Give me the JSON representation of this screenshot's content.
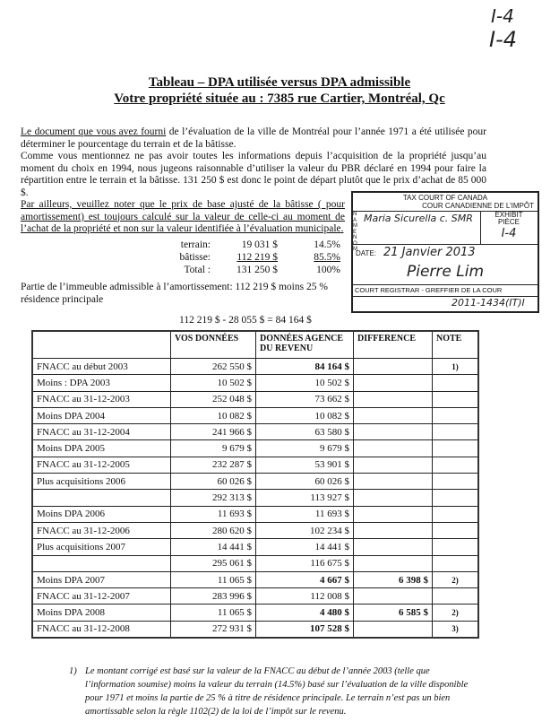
{
  "handwritten_marks": [
    "I-4",
    "I-4"
  ],
  "title": {
    "line1": "Tableau – DPA utilisée versus DPA admissible",
    "line2": "Votre propriété située au :    7385 rue Cartier, Montréal, Qc"
  },
  "paragraphs": {
    "p1_underlined": "Le document que vous avez fourni",
    "p1_rest": " de l’évaluation de la ville de Montréal pour l’année 1971 a été utilisée pour déterminer le pourcentage du terrain et de la bâtisse.",
    "p2": "Comme vous mentionnez ne pas avoir toutes les informations depuis l’acquisition de la propriété jusqu’au moment du choix en 1994, nous jugeons raisonnable d’utiliser la valeur du PBR déclaré en 1994 pour faire la répartition entre le terrain et la bâtisse.  131 250 $ est donc le point de départ plutôt que le prix d’achat de 85 000 $.",
    "p3": "Par ailleurs, veuillez noter que le prix de base ajusté de la bâtisse ( pour amortissement) est toujours calculé sur la valeur de celle-ci au moment de l’achat de la propriété et non sur la valeur identifiée à l’évaluation municipale."
  },
  "split": [
    {
      "label": "terrain:",
      "amount": "19 031 $",
      "pct": "14.5%"
    },
    {
      "label": "bâtisse:",
      "amount": "112 219 $",
      "pct": "85.5%"
    },
    {
      "label": "Total :",
      "amount": "131 250 $",
      "pct": "100%"
    }
  ],
  "admissible": {
    "line1": "Partie de l’immeuble admissible à l’amortissement:  112 219 $  moins 25 % résidence principale",
    "line2": "112 219 $  -  28 055 $   =   84 164 $"
  },
  "stamp": {
    "court": "TAX COURT OF CANADA",
    "court_fr": "COUR CANADIENNE DE L’IMPÔT",
    "exhibit": "EXHIBIT",
    "piece": "PIÈCE",
    "name_label": "NAME NOM",
    "name_value": "Maria Sicurella  c. SMR",
    "exhibit_value": "I-4",
    "date_label": "DATE:",
    "date_value": "21 Janvier 2013",
    "signature": "Pierre Lim",
    "registrar": "COURT REGISTRAR - GREFFIER DE LA COUR",
    "file_no": "2011-1434(IT)I"
  },
  "table": {
    "headers": [
      "",
      "VOS DONNÉES",
      "DONNÉES AGENCE DU REVENU",
      "DIFFERENCE",
      "NOTE"
    ],
    "rows": [
      {
        "label": "FNACC au début 2003",
        "vos": "262 550 $",
        "agence": "84 164 $",
        "diff": "",
        "note": "1)",
        "bold": true
      },
      {
        "label": "Moins : DPA 2003",
        "vos": "10 502 $",
        "agence": "10 502 $",
        "diff": "",
        "note": ""
      },
      {
        "label": "FNACC au  31-12-2003",
        "vos": "252 048 $",
        "agence": "73 662 $",
        "diff": "",
        "note": ""
      },
      {
        "label": "Moins DPA  2004",
        "vos": "10 082 $",
        "agence": "10 082 $",
        "diff": "",
        "note": ""
      },
      {
        "label": "FNACC au 31-12-2004",
        "vos": "241 966 $",
        "agence": "63 580 $",
        "diff": "",
        "note": ""
      },
      {
        "label": "Moins DPA 2005",
        "vos": "9 679 $",
        "agence": "9 679 $",
        "diff": "",
        "note": ""
      },
      {
        "label": "FNACC au 31-12-2005",
        "vos": "232 287 $",
        "agence": "53 901 $",
        "diff": "",
        "note": ""
      },
      {
        "label": "Plus acquisitions 2006",
        "vos": "60 026 $",
        "agence": "60 026 $",
        "diff": "",
        "note": ""
      },
      {
        "label": "",
        "vos": "292 313 $",
        "agence": "113 927 $",
        "diff": "",
        "note": ""
      },
      {
        "label": "Moins DPA 2006",
        "vos": "11 693 $",
        "agence": "11 693 $",
        "diff": "",
        "note": ""
      },
      {
        "label": "FNACC au  31-12-2006",
        "vos": "280 620 $",
        "agence": "102 234 $",
        "diff": "",
        "note": ""
      },
      {
        "label": "Plus acquisitions 2007",
        "vos": "14 441 $",
        "agence": "14 441 $",
        "diff": "",
        "note": ""
      },
      {
        "label": "",
        "vos": "295 061 $",
        "agence": "116 675 $",
        "diff": "",
        "note": ""
      },
      {
        "label": "Moins DPA 2007",
        "vos": "11 065 $",
        "agence": "4 667 $",
        "diff": "6 398 $",
        "note": "2)",
        "bold": true
      },
      {
        "label": "FNACC au  31-12-2007",
        "vos": "283 996 $",
        "agence": "112 008 $",
        "diff": "",
        "note": ""
      },
      {
        "label": "Moins DPA 2008",
        "vos": "11 065 $",
        "agence": "4 480 $",
        "diff": "6 585 $",
        "note": "2)",
        "bold": true
      },
      {
        "label": "FNACC au   31-12-2008",
        "vos": "272 931 $",
        "agence": "107 528 $",
        "diff": "",
        "note": "3)",
        "bold": true
      }
    ]
  },
  "footnote": {
    "marker": "1)",
    "text": "Le montant corrigé est basé sur la valeur de la FNACC au début de l’année 2003 (telle que l’information soumise) moins la valeur du terrain (14.5%) basé sur l’évaluation de la ville disponible pour 1971 et moins la partie de  25 % à titre de résidence principale.  Le terrain n’est pas un bien amortissable selon la règle  1102(2) de la loi de l’impôt sur le revenu."
  }
}
